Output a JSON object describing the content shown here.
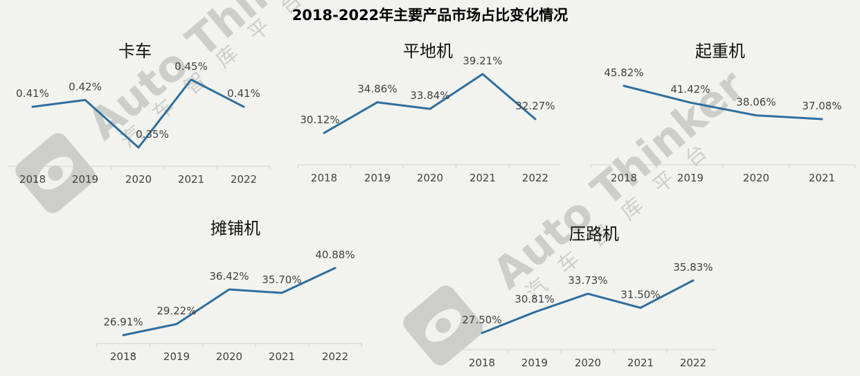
{
  "title": "2018-2022年主要产品市场占比变化情况",
  "watermark": {
    "brand": "Auto Thinker",
    "cn": [
      "汽",
      "车",
      "智",
      "库",
      "平",
      "台"
    ]
  },
  "chart_data": [
    {
      "type": "line",
      "title": "卡车",
      "categories": [
        "2018",
        "2019",
        "2020",
        "2021",
        "2022"
      ],
      "series": [
        {
          "values": [
            0.41,
            0.42,
            0.35,
            0.45,
            0.41
          ],
          "labels": [
            "0.41%",
            "0.42%",
            "0.35%",
            "0.45%",
            "0.41%"
          ]
        }
      ],
      "color": "#2e6e9e"
    },
    {
      "type": "line",
      "title": "平地机",
      "categories": [
        "2018",
        "2019",
        "2020",
        "2021",
        "2022"
      ],
      "series": [
        {
          "values": [
            30.12,
            34.86,
            33.84,
            39.21,
            32.27
          ],
          "labels": [
            "30.12%",
            "34.86%",
            "33.84%",
            "39.21%",
            "32.27%"
          ]
        }
      ],
      "color": "#2e6e9e"
    },
    {
      "type": "line",
      "title": "起重机",
      "categories": [
        "2018",
        "2019",
        "2020",
        "2021"
      ],
      "series": [
        {
          "values": [
            45.82,
            41.42,
            38.06,
            37.08
          ],
          "labels": [
            "45.82%",
            "41.42%",
            "38.06%",
            "37.08%"
          ]
        }
      ],
      "color": "#2e6e9e"
    },
    {
      "type": "line",
      "title": "摊铺机",
      "categories": [
        "2018",
        "2019",
        "2020",
        "2021",
        "2022"
      ],
      "series": [
        {
          "values": [
            26.91,
            29.22,
            36.42,
            35.7,
            40.88
          ],
          "labels": [
            "26.91%",
            "29.22%",
            "36.42%",
            "35.70%",
            "40.88%"
          ]
        }
      ],
      "color": "#2e6e9e"
    },
    {
      "type": "line",
      "title": "压路机",
      "categories": [
        "2018",
        "2019",
        "2020",
        "2021",
        "2022"
      ],
      "series": [
        {
          "values": [
            27.5,
            30.81,
            33.73,
            31.5,
            35.83
          ],
          "labels": [
            "27.50%",
            "30.81%",
            "33.73%",
            "31.50%",
            "35.83%"
          ]
        }
      ],
      "color": "#2e6e9e"
    }
  ]
}
